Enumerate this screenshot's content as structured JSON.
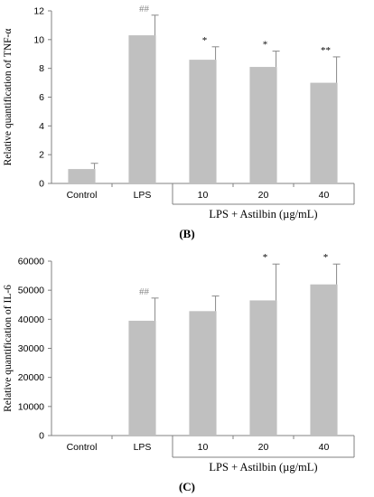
{
  "chart_data": [
    {
      "type": "bar",
      "panel": "(B)",
      "ylabel": "Relative quantification of TNF-α",
      "categories": [
        "Control",
        "LPS",
        "10",
        "20",
        "40"
      ],
      "values": [
        1.0,
        10.3,
        8.6,
        8.1,
        7.0
      ],
      "errors": [
        0.4,
        1.4,
        0.9,
        1.1,
        1.8
      ],
      "annotations": [
        "",
        "##",
        "*",
        "*",
        "**"
      ],
      "yticks": [
        "0",
        "2",
        "4",
        "6",
        "8",
        "10",
        "12"
      ],
      "ylim": [
        0,
        12
      ],
      "group_label": "LPS + Astilbin (µg/mL)",
      "bar_color": "#c0c0c0"
    },
    {
      "type": "bar",
      "panel": "(C)",
      "ylabel": "Relative quantification of IL-6",
      "categories": [
        "Control",
        "LPS",
        "10",
        "20",
        "40"
      ],
      "values": [
        0,
        39500,
        42800,
        46500,
        52000
      ],
      "errors": [
        0,
        7800,
        5200,
        12500,
        7000
      ],
      "annotations": [
        "",
        "##",
        "",
        "*",
        "*"
      ],
      "yticks": [
        "0",
        "10000",
        "20000",
        "30000",
        "40000",
        "50000",
        "60000"
      ],
      "ylim": [
        0,
        60000
      ],
      "group_label": "LPS + Astilbin (µg/mL)",
      "bar_color": "#c0c0c0"
    }
  ]
}
